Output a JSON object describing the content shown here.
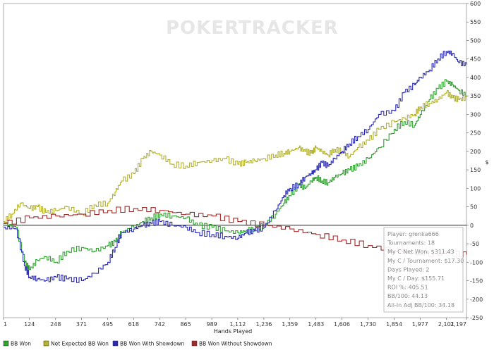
{
  "app": {
    "watermark": "POKERTRACKER"
  },
  "chart_data": {
    "type": "line",
    "title": "",
    "xlabel": "Hands Played",
    "ylabel": "$",
    "xlim": [
      1,
      2197
    ],
    "ylim": [
      -250,
      600
    ],
    "x_ticks": [
      "1",
      "124",
      "248",
      "371",
      "495",
      "618",
      "742",
      "865",
      "989",
      "1,112",
      "1,236",
      "1,359",
      "1,483",
      "1,606",
      "1,730",
      "1,854",
      "1,977",
      "2,101",
      "2,197"
    ],
    "x_tick_values": [
      1,
      124,
      248,
      371,
      495,
      618,
      742,
      865,
      989,
      1112,
      1236,
      1359,
      1483,
      1606,
      1730,
      1854,
      1977,
      2101,
      2197
    ],
    "y_ticks": [
      600,
      550,
      500,
      450,
      400,
      350,
      300,
      250,
      200,
      150,
      100,
      50,
      0,
      -50,
      -100,
      -150,
      -200,
      -250
    ],
    "series": [
      {
        "name": "BB Won",
        "color": "#2ea32e",
        "x": [
          1,
          60,
          100,
          124,
          160,
          200,
          248,
          300,
          371,
          430,
          495,
          530,
          560,
          618,
          660,
          700,
          742,
          800,
          865,
          920,
          989,
          1050,
          1112,
          1150,
          1190,
          1236,
          1290,
          1330,
          1359,
          1400,
          1430,
          1460,
          1483,
          1510,
          1540,
          1570,
          1606,
          1640,
          1680,
          1730,
          1780,
          1854,
          1900,
          1950,
          1977,
          2020,
          2060,
          2101,
          2130,
          2160,
          2197
        ],
        "y": [
          5,
          -5,
          -100,
          -120,
          -95,
          -85,
          -100,
          -70,
          -60,
          -70,
          -55,
          -45,
          -20,
          -5,
          10,
          20,
          30,
          25,
          20,
          0,
          -5,
          -15,
          -20,
          -15,
          -10,
          0,
          30,
          60,
          80,
          110,
          100,
          120,
          130,
          120,
          115,
          130,
          140,
          150,
          160,
          180,
          210,
          260,
          280,
          270,
          300,
          340,
          370,
          390,
          380,
          365,
          350
        ]
      },
      {
        "name": "Net Expected BB Won",
        "color": "#b5b32e",
        "x": [
          1,
          40,
          80,
          124,
          160,
          200,
          248,
          300,
          371,
          430,
          495,
          530,
          560,
          618,
          660,
          700,
          742,
          800,
          865,
          920,
          989,
          1050,
          1112,
          1150,
          1190,
          1236,
          1290,
          1330,
          1359,
          1400,
          1430,
          1460,
          1483,
          1510,
          1540,
          1570,
          1606,
          1640,
          1680,
          1730,
          1780,
          1854,
          1900,
          1950,
          1977,
          2020,
          2060,
          2101,
          2130,
          2160,
          2197
        ],
        "y": [
          10,
          30,
          60,
          45,
          50,
          35,
          40,
          50,
          30,
          55,
          60,
          90,
          120,
          140,
          180,
          200,
          190,
          165,
          160,
          170,
          175,
          180,
          165,
          170,
          175,
          180,
          190,
          195,
          200,
          210,
          200,
          195,
          210,
          200,
          190,
          205,
          200,
          185,
          210,
          230,
          260,
          280,
          290,
          300,
          320,
          330,
          340,
          360,
          345,
          340,
          345
        ]
      },
      {
        "name": "BB Won With Showdown",
        "color": "#2a2ab5",
        "x": [
          1,
          60,
          100,
          124,
          160,
          200,
          248,
          300,
          371,
          430,
          495,
          530,
          560,
          618,
          660,
          700,
          742,
          800,
          865,
          920,
          989,
          1050,
          1112,
          1150,
          1190,
          1236,
          1290,
          1330,
          1359,
          1400,
          1430,
          1460,
          1483,
          1510,
          1540,
          1570,
          1606,
          1640,
          1680,
          1730,
          1780,
          1854,
          1900,
          1950,
          1977,
          2020,
          2060,
          2101,
          2130,
          2160,
          2197
        ],
        "y": [
          -5,
          -10,
          -110,
          -140,
          -145,
          -150,
          -140,
          -145,
          -150,
          -130,
          -100,
          -60,
          -20,
          -10,
          0,
          5,
          10,
          0,
          -5,
          -20,
          -25,
          -30,
          -35,
          -20,
          -15,
          -5,
          40,
          80,
          100,
          110,
          130,
          140,
          150,
          170,
          160,
          180,
          200,
          220,
          240,
          260,
          300,
          310,
          360,
          380,
          400,
          420,
          450,
          470,
          465,
          440,
          435
        ]
      },
      {
        "name": "BB Won Without Showdown",
        "color": "#a02a2a",
        "x": [
          1,
          124,
          248,
          371,
          495,
          618,
          742,
          865,
          989,
          1112,
          1236,
          1359,
          1483,
          1606,
          1730,
          1854,
          1977,
          2101,
          2197
        ],
        "y": [
          5,
          20,
          25,
          30,
          40,
          45,
          40,
          30,
          25,
          10,
          0,
          -10,
          -25,
          -40,
          -55,
          -70,
          -80,
          -75,
          -80
        ]
      }
    ],
    "legend": [
      "BB Won",
      "Net Expected BB Won",
      "BB Won With Showdown",
      "BB Won Without Showdown"
    ],
    "legend_position": "bottom-left",
    "grid": false
  },
  "stats": {
    "title": "Player: grenka666",
    "lines": [
      "Player: grenka666",
      "Tournaments: 18",
      "My C Net Won: $311.43",
      "My C / Tournament: $17.30",
      "Days Played: 2",
      "My C / Day: $155.71",
      "ROI %: 405.51",
      "BB/100: 44.13",
      "All-In Adj BB/100: 34.18"
    ]
  }
}
